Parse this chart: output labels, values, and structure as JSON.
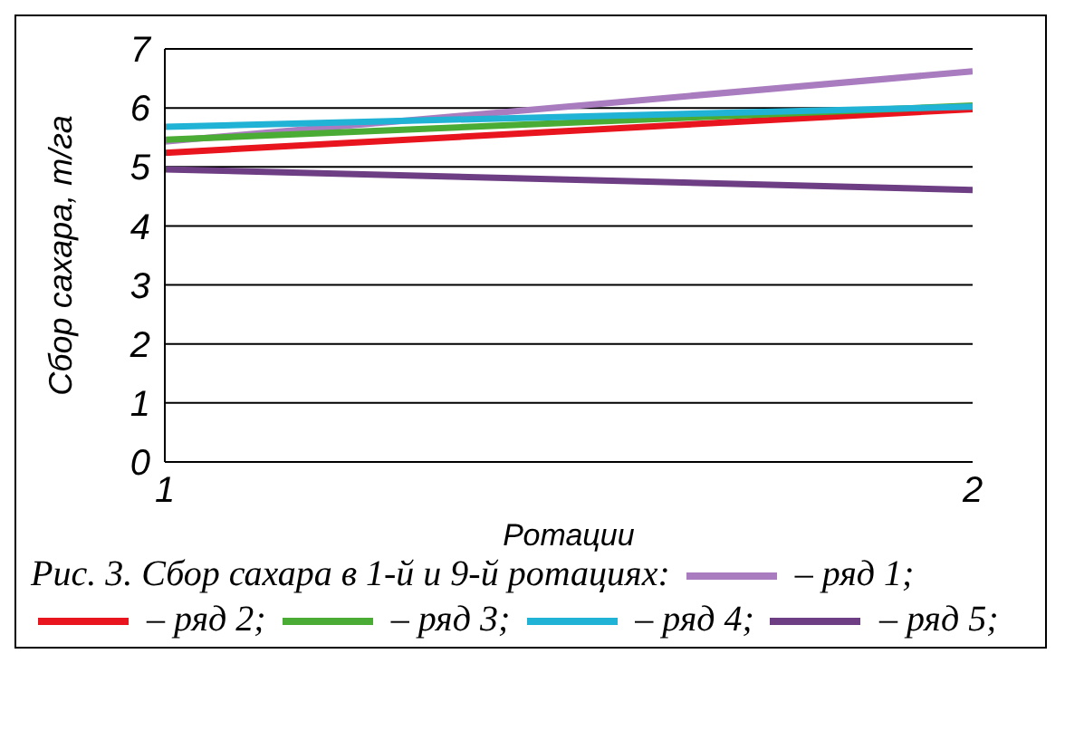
{
  "chart_data": {
    "type": "line",
    "title": "Рис. 3. Сбор сахара в 1-й и 9-й ротациях:",
    "xlabel": "Ротации",
    "ylabel": "Сбор сахара, т/га",
    "x": [
      1,
      2
    ],
    "xlim": [
      1,
      2
    ],
    "xticks": [
      1,
      2
    ],
    "ylim": [
      0,
      7
    ],
    "yticks": [
      0,
      1,
      2,
      3,
      4,
      5,
      6,
      7
    ],
    "grid": "y",
    "legend": "bottom",
    "marker": "none",
    "line_style": "solid",
    "series": [
      {
        "name": "– ряд 1;",
        "color": "#a97bbf",
        "values": [
          5.43,
          6.62
        ]
      },
      {
        "name": "– ряд 2;",
        "color": "#e8141e",
        "values": [
          5.24,
          5.98
        ]
      },
      {
        "name": "– ряд 3;",
        "color": "#4aab35",
        "values": [
          5.46,
          6.04
        ]
      },
      {
        "name": "– ряд 4;",
        "color": "#21b3d6",
        "values": [
          5.68,
          6.02
        ]
      },
      {
        "name": "– ряд 5;",
        "color": "#6e3e84",
        "values": [
          4.96,
          4.61
        ]
      }
    ]
  }
}
